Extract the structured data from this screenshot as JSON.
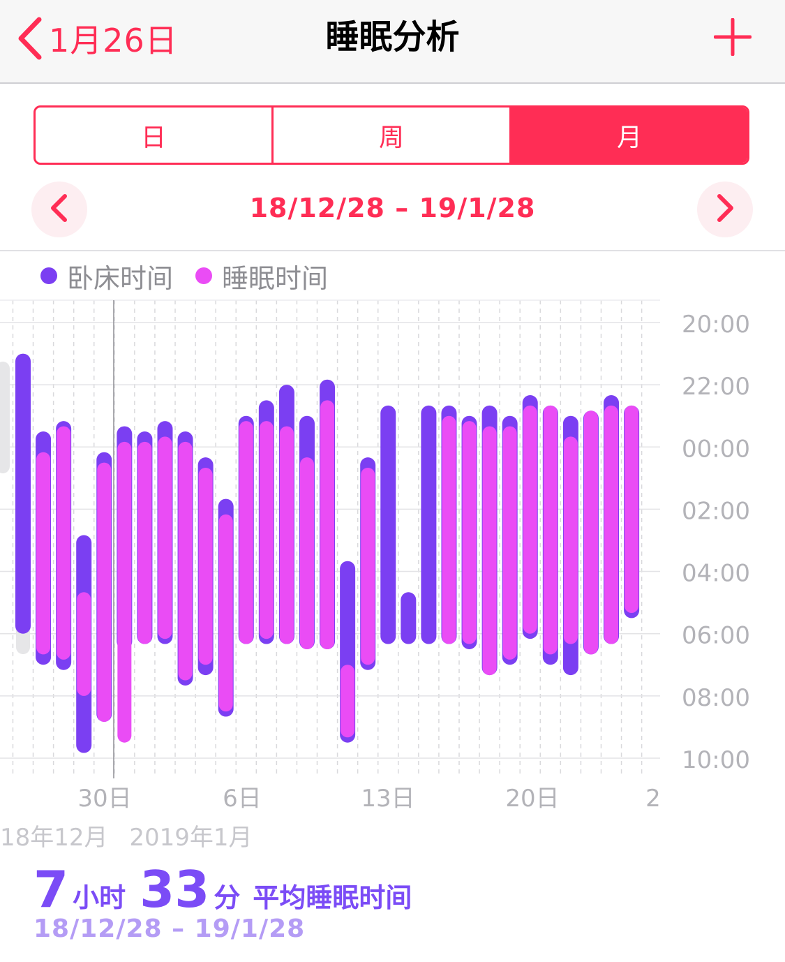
{
  "nav": {
    "back_label": "1月26日",
    "title": "睡眠分析",
    "add_icon": "plus-icon"
  },
  "segments": [
    {
      "label": "日",
      "active": false
    },
    {
      "label": "周",
      "active": false
    },
    {
      "label": "月",
      "active": true
    }
  ],
  "range": {
    "label": "18/12/28 – 19/1/28",
    "prev_icon": "chevron-left-icon",
    "next_icon": "chevron-right-icon"
  },
  "legend": [
    {
      "label": "卧床时间",
      "color": "#7b3ff2"
    },
    {
      "label": "睡眠时间",
      "color": "#ea4cf5"
    }
  ],
  "months": [
    "18年12月",
    "2019年1月"
  ],
  "summary": {
    "hours": "7",
    "hours_unit": "小时",
    "minutes": "33",
    "minutes_unit": "分",
    "label": "平均睡眠时间",
    "range": "18/12/28 – 19/1/28"
  },
  "colors": {
    "accent": "#ff2d55",
    "in_bed": "#7b3ff2",
    "asleep": "#ea4cf5"
  },
  "chart_data": {
    "type": "bar",
    "orientation": "vertical-ranges",
    "y_axis_ticks": [
      "20:00",
      "22:00",
      "00:00",
      "02:00",
      "04:00",
      "06:00",
      "08:00",
      "10:00"
    ],
    "y_range_hours_from_20": [
      0,
      14
    ],
    "x_tick_labels": [
      "30日",
      "6日",
      "13日",
      "20日",
      "2"
    ],
    "series": [
      {
        "name": "卧床时间",
        "ranges": [
          [
            "12/27",
            "21:00",
            "06:00"
          ],
          [
            "12/28",
            "23:30",
            "07:00"
          ],
          [
            "12/29",
            "23:10",
            "07:10"
          ],
          [
            "12/30",
            "02:50",
            "09:50"
          ],
          [
            "12/31",
            "00:10",
            "08:50"
          ],
          [
            "1/1",
            "23:20",
            "06:30"
          ],
          [
            "1/2",
            "23:30",
            "06:20"
          ],
          [
            "1/3",
            "23:10",
            "06:20"
          ],
          [
            "1/4",
            "23:30",
            "07:40"
          ],
          [
            "1/5",
            "00:20",
            "07:20"
          ],
          [
            "1/6",
            "01:40",
            "08:40"
          ],
          [
            "1/7",
            "23:00",
            "06:20"
          ],
          [
            "1/8",
            "22:30",
            "06:20"
          ],
          [
            "1/9",
            "22:00",
            "06:20"
          ],
          [
            "1/10",
            "23:00",
            "06:30"
          ],
          [
            "1/11",
            "21:50",
            "06:30"
          ],
          [
            "1/12",
            "03:40",
            "09:30"
          ],
          [
            "1/13",
            "00:20",
            "07:10"
          ],
          [
            "1/14",
            "22:40",
            "06:20"
          ],
          [
            "1/15",
            "04:40",
            "06:20"
          ],
          [
            "1/16",
            "22:40",
            "06:20"
          ],
          [
            "1/17",
            "22:40",
            "06:20"
          ],
          [
            "1/18",
            "23:00",
            "06:30"
          ],
          [
            "1/19",
            "22:40",
            "07:20"
          ],
          [
            "1/20",
            "23:00",
            "07:00"
          ],
          [
            "1/21",
            "22:20",
            "06:10"
          ],
          [
            "1/22",
            "22:40",
            "07:00"
          ],
          [
            "1/23",
            "23:00",
            "07:20"
          ],
          [
            "1/24",
            "22:50",
            "06:40"
          ],
          [
            "1/25",
            "22:20",
            "06:20"
          ],
          [
            "1/26",
            "22:40",
            "05:30"
          ]
        ]
      },
      {
        "name": "睡眠时间",
        "ranges": [
          [
            "12/28",
            "00:10",
            "06:40"
          ],
          [
            "12/29",
            "23:20",
            "06:50"
          ],
          [
            "12/30",
            "04:40",
            "08:00"
          ],
          [
            "12/31",
            "00:30",
            "08:50"
          ],
          [
            "1/1",
            "23:50",
            "09:30"
          ],
          [
            "1/2",
            "23:50",
            "06:20"
          ],
          [
            "1/3",
            "23:40",
            "06:10"
          ],
          [
            "1/4",
            "23:50",
            "07:30"
          ],
          [
            "1/5",
            "00:40",
            "07:00"
          ],
          [
            "1/6",
            "02:10",
            "08:30"
          ],
          [
            "1/7",
            "23:10",
            "06:20"
          ],
          [
            "1/8",
            "23:10",
            "06:10"
          ],
          [
            "1/9",
            "23:20",
            "06:20"
          ],
          [
            "1/10",
            "00:20",
            "06:30"
          ],
          [
            "1/11",
            "22:30",
            "06:30"
          ],
          [
            "1/12",
            "07:00",
            "09:20"
          ],
          [
            "1/13",
            "00:40",
            "07:00"
          ],
          [
            "1/17",
            "23:00",
            "06:20"
          ],
          [
            "1/18",
            "23:10",
            "06:20"
          ],
          [
            "1/19",
            "23:20",
            "07:20"
          ],
          [
            "1/20",
            "23:20",
            "06:50"
          ],
          [
            "1/21",
            "22:40",
            "06:00"
          ],
          [
            "1/22",
            "22:40",
            "06:40"
          ],
          [
            "1/23",
            "23:40",
            "06:20"
          ],
          [
            "1/24",
            "22:50",
            "06:40"
          ],
          [
            "1/25",
            "22:40",
            "06:20"
          ],
          [
            "1/26",
            "22:40",
            "05:20"
          ]
        ]
      }
    ]
  }
}
